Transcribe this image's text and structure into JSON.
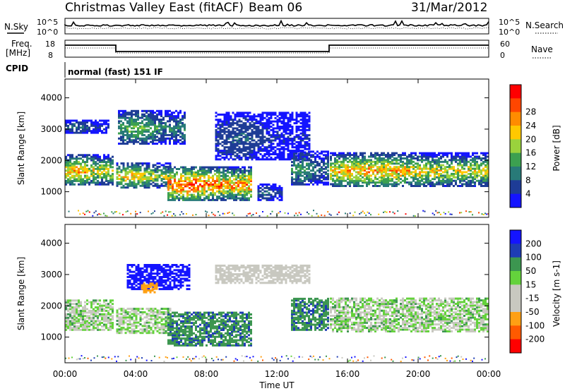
{
  "header": {
    "title": "Christmas Valley East (fitACF)",
    "beam": "Beam 06",
    "date": "31/Mar/2012"
  },
  "panels": {
    "nsky_label": "N.Sky",
    "nsearch_label": "N.Search",
    "noise_ticks": [
      "10^5",
      "10^0"
    ],
    "freq_label_1": "Freq.",
    "freq_label_2": "[MHz]",
    "freq_ticks": [
      "18",
      "8"
    ],
    "nave_label": "Nave",
    "nave_ticks": [
      "60",
      "0"
    ],
    "cpid_label": "CPID",
    "cpid_value": "normal (fast) 151 IF"
  },
  "colors": {
    "power_scale": [
      "#1414ff",
      "#1e3c96",
      "#287a78",
      "#3ca050",
      "#9ad23c",
      "#ffc800",
      "#ff8c00",
      "#ff4600",
      "#ff0000"
    ],
    "velocity_scale": [
      "#ff0000",
      "#ff5a00",
      "#ffa014",
      "#c8c8c0",
      "#c8c8c0",
      "#64d23c",
      "#3c9650",
      "#1e3cb4",
      "#1414ff"
    ],
    "ground_scatter": "#c8c8c0"
  },
  "chart_data": [
    {
      "type": "heatmap",
      "name": "power",
      "ylabel": "Slant Range [km]",
      "xlabel": "Time UT",
      "xlim": [
        0,
        24
      ],
      "ylim": [
        180,
        4600
      ],
      "yticks": [
        "1000",
        "2000",
        "3000",
        "4000"
      ],
      "xticks": [
        "00:00",
        "04:00",
        "08:00",
        "12:00",
        "16:00",
        "20:00",
        "00:00"
      ],
      "colorbar_label": "Power [dB]",
      "colorbar_ticks": [
        "4",
        "8",
        "12",
        "16",
        "20",
        "24",
        "28"
      ],
      "regions": [
        {
          "t0": 0.0,
          "t1": 2.7,
          "r0": 1200,
          "r1": 2150,
          "peak": 24
        },
        {
          "t0": 2.9,
          "t1": 6.0,
          "r0": 1100,
          "r1": 1900,
          "peak": 22
        },
        {
          "t0": 5.8,
          "t1": 10.5,
          "r0": 700,
          "r1": 1800,
          "peak": 30
        },
        {
          "t0": 0.0,
          "t1": 2.5,
          "r0": 2850,
          "r1": 3250,
          "peak": 8
        },
        {
          "t0": 3.0,
          "t1": 6.8,
          "r0": 2500,
          "r1": 3600,
          "peak": 14
        },
        {
          "t0": 8.5,
          "t1": 13.8,
          "r0": 2000,
          "r1": 3500,
          "peak": 6
        },
        {
          "t0": 12.8,
          "t1": 14.9,
          "r0": 1200,
          "r1": 2300,
          "peak": 12
        },
        {
          "t0": 10.9,
          "t1": 12.3,
          "r0": 700,
          "r1": 1200,
          "peak": 8
        },
        {
          "t0": 15.0,
          "t1": 24.0,
          "r0": 1150,
          "r1": 2200,
          "peak": 24
        }
      ]
    },
    {
      "type": "heatmap",
      "name": "velocity",
      "ylabel": "Slant Range [km]",
      "xlabel": "Time UT",
      "xlim": [
        0,
        24
      ],
      "ylim": [
        180,
        4600
      ],
      "yticks": [
        "1000",
        "2000",
        "3000",
        "4000"
      ],
      "xticks": [
        "00:00",
        "04:00",
        "08:00",
        "12:00",
        "16:00",
        "20:00",
        "00:00"
      ],
      "colorbar_label": "Velocity [m s-1]",
      "colorbar_ticks": [
        "200",
        "100",
        "50",
        "15",
        "-15",
        "-50",
        "-100",
        "-200"
      ],
      "regions": [
        {
          "t0": 0.0,
          "t1": 2.7,
          "r0": 1200,
          "r1": 2150,
          "vel": 0
        },
        {
          "t0": 2.9,
          "t1": 6.0,
          "r0": 1100,
          "r1": 1900,
          "vel": 0
        },
        {
          "t0": 5.8,
          "t1": 10.5,
          "r0": 700,
          "r1": 1800,
          "vel": 40
        },
        {
          "t0": 3.5,
          "t1": 7.0,
          "r0": 2500,
          "r1": 3300,
          "vel": 200
        },
        {
          "t0": 4.3,
          "t1": 5.2,
          "r0": 2400,
          "r1": 2700,
          "vel": -80
        },
        {
          "t0": 8.5,
          "t1": 13.8,
          "r0": 2700,
          "r1": 3300,
          "vel": -30
        },
        {
          "t0": 12.8,
          "t1": 14.9,
          "r0": 1200,
          "r1": 2200,
          "vel": 40
        },
        {
          "t0": 15.0,
          "t1": 24.0,
          "r0": 1150,
          "r1": 2200,
          "vel": 0
        }
      ]
    }
  ]
}
